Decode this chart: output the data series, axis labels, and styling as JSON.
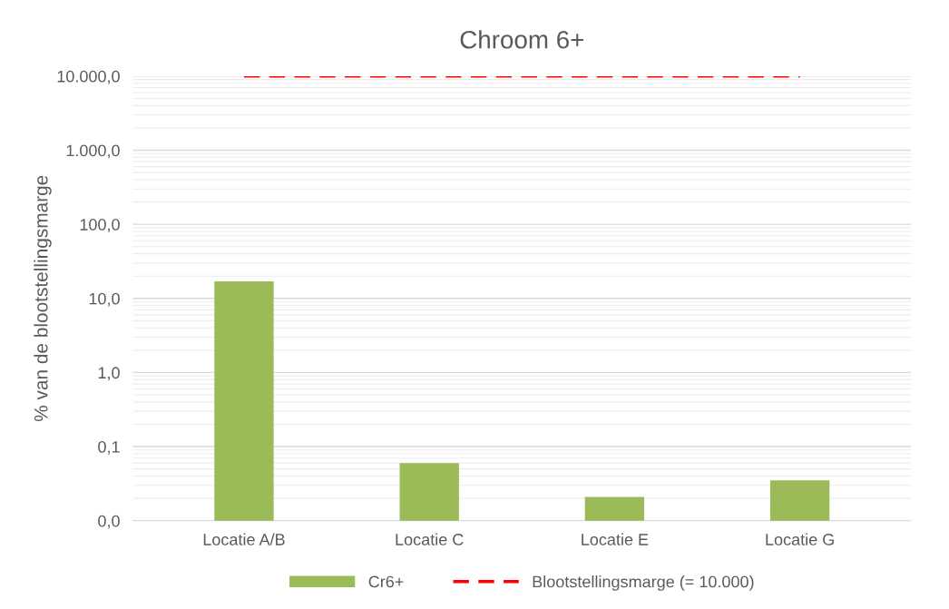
{
  "chart_data": {
    "type": "bar",
    "title": "Chroom 6+",
    "ylabel": "% van de blootstellingsmarge",
    "categories": [
      "Locatie A/B",
      "Locatie C",
      "Locatie E",
      "Locatie G"
    ],
    "series": [
      {
        "name": "Cr6+",
        "color": "#9bbb59",
        "values": [
          17,
          0.06,
          0.021,
          0.035
        ]
      },
      {
        "name": "Blootstellingsmarge (= 10.000)",
        "type": "line",
        "color": "#ff0000",
        "line_style": "dashed",
        "values": [
          10000,
          10000,
          10000,
          10000
        ]
      }
    ],
    "log": "y",
    "ylim": [
      0.01,
      10000
    ],
    "yticks": [
      {
        "value": 0.01,
        "label": "0,0"
      },
      {
        "value": 0.1,
        "label": "0,1"
      },
      {
        "value": 1,
        "label": "1,0"
      },
      {
        "value": 10,
        "label": "10,0"
      },
      {
        "value": 100,
        "label": "100,0"
      },
      {
        "value": 1000,
        "label": "1.000,0"
      },
      {
        "value": 10000,
        "label": "10.000,0"
      }
    ],
    "grid": "y",
    "legend": "bottom"
  }
}
